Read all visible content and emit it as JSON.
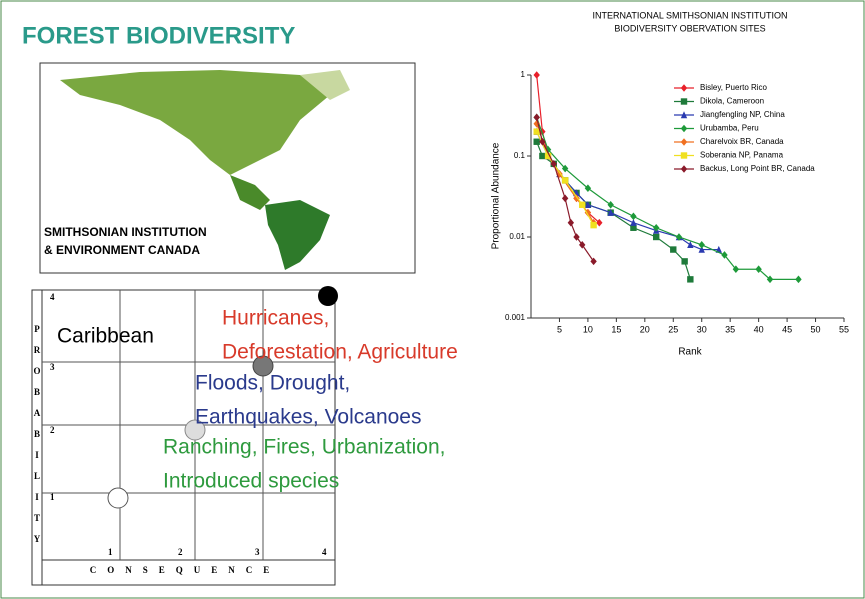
{
  "title": "FOREST BIODIVERSITY",
  "map": {
    "label_lines": [
      "SMITHSONIAN INSTITUTION",
      "& ENVIRONMENT CANADA"
    ]
  },
  "risk_matrix": {
    "probability_letters": [
      "P",
      "R",
      "O",
      "B",
      "A",
      "B",
      "I",
      "L",
      "I",
      "T",
      "Y"
    ],
    "probability_ticks": [
      "4",
      "3",
      "2",
      "1"
    ],
    "consequence_label": "CONSEQUENCE",
    "consequence_ticks": [
      "1",
      "2",
      "3",
      "4"
    ],
    "region": "Caribbean",
    "threats": [
      {
        "lines": [
          "Hurricanes,",
          "Deforestation, Agriculture"
        ],
        "color": "#d83a2a"
      },
      {
        "lines": [
          "Floods, Drought,",
          "Earthquakes, Volcanoes"
        ],
        "color": "#2a3a8c"
      },
      {
        "lines": [
          "Ranching, Fires, Urbanization,",
          "Introduced species"
        ],
        "color": "#2e9a3e"
      }
    ]
  },
  "chart_data": {
    "type": "line",
    "title_lines": [
      "INTERNATIONAL SMITHSONIAN INSTITUTION",
      "BIODIVERSITY OBERVATION SITES"
    ],
    "x_label": "Rank",
    "y_label": "Proportional Abundance",
    "xlim": [
      0,
      55
    ],
    "xticks": [
      5,
      10,
      15,
      20,
      25,
      30,
      35,
      40,
      45,
      50,
      55
    ],
    "ylim": [
      0.001,
      1
    ],
    "yticks": [
      0.001,
      0.01,
      0.1,
      1
    ],
    "log_y": true,
    "legend": "top-right",
    "series": [
      {
        "name": "Bisley, Puerto Rico",
        "color": "#e8202a",
        "marker": "diamond",
        "x": [
          1,
          2,
          3,
          5,
          8,
          10,
          12
        ],
        "values": [
          1.0,
          0.2,
          0.1,
          0.06,
          0.03,
          0.02,
          0.015
        ]
      },
      {
        "name": "Dikola, Cameroon",
        "color": "#1e7a3a",
        "marker": "square",
        "x": [
          1,
          2,
          4,
          6,
          8,
          10,
          14,
          18,
          22,
          25,
          27,
          28
        ],
        "values": [
          0.15,
          0.1,
          0.08,
          0.05,
          0.035,
          0.025,
          0.02,
          0.013,
          0.01,
          0.007,
          0.005,
          0.003
        ]
      },
      {
        "name": "Jiangfengling NP, China",
        "color": "#2a3ab0",
        "marker": "triangle",
        "x": [
          1,
          3,
          5,
          8,
          10,
          14,
          18,
          22,
          26,
          28,
          30,
          33
        ],
        "values": [
          0.2,
          0.1,
          0.06,
          0.035,
          0.025,
          0.02,
          0.015,
          0.012,
          0.01,
          0.008,
          0.007,
          0.007
        ]
      },
      {
        "name": "Urubamba, Peru",
        "color": "#1e9a3a",
        "marker": "diamond",
        "x": [
          1,
          3,
          6,
          10,
          14,
          18,
          22,
          26,
          30,
          34,
          36,
          40,
          42,
          47
        ],
        "values": [
          0.3,
          0.12,
          0.07,
          0.04,
          0.025,
          0.018,
          0.013,
          0.01,
          0.008,
          0.006,
          0.004,
          0.004,
          0.003,
          0.003
        ]
      },
      {
        "name": "Charelvoix BR, Canada",
        "color": "#f07020",
        "marker": "diamond",
        "x": [
          1,
          3,
          5,
          8,
          10,
          11
        ],
        "values": [
          0.25,
          0.1,
          0.06,
          0.03,
          0.02,
          0.015
        ]
      },
      {
        "name": "Soberania NP, Panama",
        "color": "#f0e020",
        "marker": "square",
        "x": [
          1,
          3,
          6,
          9,
          11
        ],
        "values": [
          0.2,
          0.1,
          0.05,
          0.025,
          0.014
        ]
      },
      {
        "name": "Backus, Long Point BR, Canada",
        "color": "#8a1a2a",
        "marker": "diamond",
        "x": [
          1,
          2,
          4,
          6,
          7,
          8,
          9,
          11
        ],
        "values": [
          0.3,
          0.15,
          0.08,
          0.03,
          0.015,
          0.01,
          0.008,
          0.005
        ]
      }
    ]
  }
}
